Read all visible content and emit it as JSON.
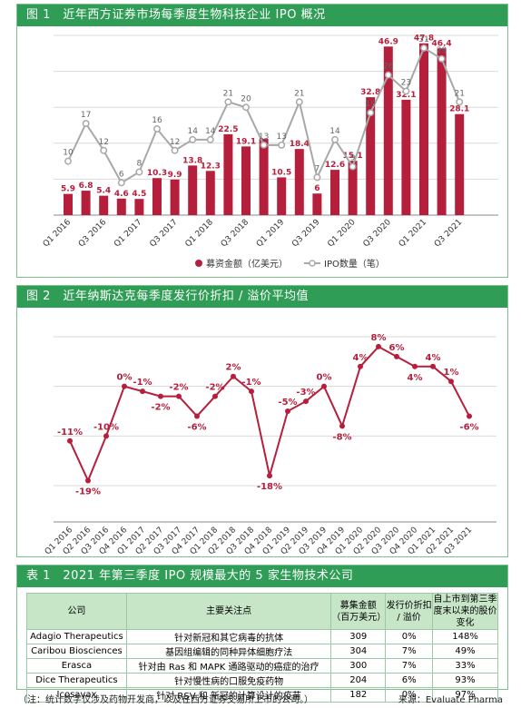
{
  "fig1": {
    "header": "图 1　近年西方证券市场每季度生物科技企业 IPO 概况",
    "legend": {
      "bar": "募资金额（亿美元）",
      "line": "IPO数量（笔）"
    },
    "colors": {
      "bar": "#b51f3c",
      "line": "#a8a8a8"
    },
    "x_tick_labels": [
      "Q1 2016",
      "Q3 2016",
      "Q1 2017",
      "Q3 2017",
      "Q1 2018",
      "Q3 2018",
      "Q1 2019",
      "Q3 2019",
      "Q1 2020",
      "Q3 2020",
      "Q1 2021",
      "Q3 2021"
    ]
  },
  "fig2": {
    "header": "图 2　近年纳斯达克每季度发行价折扣 / 溢价平均值",
    "color": "#b51f3c"
  },
  "table": {
    "header": "表 1　2021 年第三季度 IPO 规模最大的 5 家生物技术公司",
    "columns": [
      "公司",
      "主要关注点",
      "募集金额（百万美元）",
      "发行价折扣 / 溢价",
      "自上市到第三季度末以来的股价变化"
    ],
    "rows": [
      [
        "Adagio Therapeutics",
        "针对新冠和其它病毒的抗体",
        "309",
        "0%",
        "148%"
      ],
      [
        "Caribou Biosciences",
        "基因组编辑的同种异体细胞疗法",
        "304",
        "7%",
        "49%"
      ],
      [
        "Erasca",
        "针对由 Ras 和 MAPK 通路驱动的癌症的治疗",
        "300",
        "7%",
        "33%"
      ],
      [
        "Dice Therapeutics",
        "针对慢性病的口服免疫药物",
        "204",
        "6%",
        "93%"
      ],
      [
        "Icosavax",
        "针对 RSV 和 新冠的计算设计的疫苗",
        "182",
        "0%",
        "97%"
      ]
    ]
  },
  "footer": {
    "note": "（注：统计数字仅涉及药物开发商，以及在西方证券交易所上市的公司。）",
    "source": "来源：Evaluate Pharma"
  },
  "chart_data": [
    {
      "type": "bar",
      "categories": [
        "Q1 2016",
        "Q2 2016",
        "Q3 2016",
        "Q4 2016",
        "Q1 2017",
        "Q2 2017",
        "Q3 2017",
        "Q4 2017",
        "Q1 2018",
        "Q2 2018",
        "Q3 2018",
        "Q4 2018",
        "Q1 2019",
        "Q2 2019",
        "Q3 2019",
        "Q4 2019",
        "Q1 2020",
        "Q2 2020",
        "Q3 2020",
        "Q4 2020",
        "Q1 2021",
        "Q2 2021",
        "Q3 2021"
      ],
      "series": [
        {
          "name": "募资金额（亿美元）",
          "type": "bar",
          "values": [
            5.9,
            6.8,
            5.4,
            4.6,
            4.5,
            10.3,
            9.9,
            13.8,
            12.3,
            22.5,
            19.1,
            21.2,
            10.5,
            18.4,
            6,
            12.6,
            15.1,
            32.8,
            46.9,
            32.1,
            47.8,
            46.4,
            28.1
          ]
        },
        {
          "name": "IPO数量（笔）",
          "type": "line",
          "values": [
            10,
            17,
            12,
            6,
            8,
            16,
            12,
            14,
            14,
            21,
            20,
            13,
            13,
            21,
            7,
            14,
            9,
            19,
            26,
            23,
            31,
            29,
            21
          ]
        }
      ],
      "bar_labels": [
        "5.9",
        "6.8",
        "5.4",
        "4.6",
        "4.5",
        "10.3",
        "9.9",
        "13.8",
        "12.3",
        "22.5",
        "19.1",
        "",
        "10.5",
        "18.4",
        "6",
        "12.6",
        "15.1",
        "32.8",
        "46.9",
        "32.1",
        "47.8",
        "46.4",
        "28.1"
      ],
      "line_labels": [
        "10",
        "17",
        "12",
        "6",
        "8",
        "16",
        "12",
        "14",
        "14",
        "21",
        "20",
        "13",
        "13",
        "21",
        "7",
        "14",
        "9",
        "19",
        "26",
        "23",
        "31",
        "29",
        "21"
      ],
      "ylim": [
        0,
        50
      ],
      "grid": true,
      "legend_position": "bottom"
    },
    {
      "type": "line",
      "categories": [
        "Q1 2016",
        "Q2 2016",
        "Q3 2016",
        "Q4 2016",
        "Q1 2017",
        "Q2 2017",
        "Q3 2017",
        "Q4 2017",
        "Q1 2018",
        "Q2 2018",
        "Q3 2018",
        "Q4 2018",
        "Q1 2019",
        "Q2 2019",
        "Q3 2019",
        "Q4 2019",
        "Q1 2020",
        "Q2 2020",
        "Q3 2020",
        "Q4 2020",
        "Q1 2021",
        "Q2 2021",
        "Q3 2021"
      ],
      "series": [
        {
          "values": [
            -11,
            -19,
            -10,
            0,
            -1,
            -2,
            -2,
            -6,
            -2,
            2,
            -1,
            -18,
            -5,
            -3,
            0,
            -8,
            4,
            8,
            6,
            4,
            4,
            1,
            -6
          ]
        }
      ],
      "labels": [
        "-11%",
        "-19%",
        "-10%",
        "0%",
        "-1%",
        "-2%",
        "-2%",
        "-6%",
        "-2%",
        "2%",
        "-1%",
        "-18%",
        "-5%",
        "-3%",
        "0%",
        "-8%",
        "4%",
        "8%",
        "6%",
        "4%",
        "4%",
        "1%",
        "-6%"
      ],
      "ylim": [
        -20,
        10
      ],
      "grid": true
    }
  ]
}
